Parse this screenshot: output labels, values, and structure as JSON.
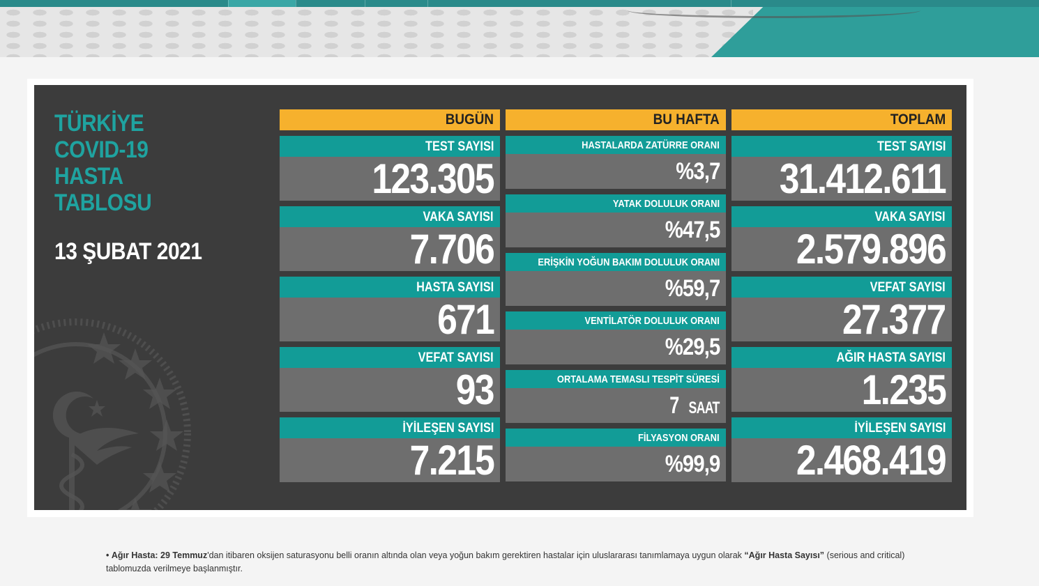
{
  "colors": {
    "teal": "#129c97",
    "title_teal": "#1fa3a0",
    "header_orange": "#f6b12d",
    "board_bg": "#3c3c3c",
    "value_bg": "#6e6e6e"
  },
  "board": {
    "title_lines": [
      "TÜRKİYE",
      "COVID-19",
      "HASTA",
      "TABLOSU"
    ],
    "date": "13 ŞUBAT 2021",
    "emblem_icon": "health-ministry-emblem"
  },
  "today": {
    "header": "BUGÜN",
    "stats": [
      {
        "label": "TEST SAYISI",
        "value": "123.305"
      },
      {
        "label": "VAKA SAYISI",
        "value": "7.706"
      },
      {
        "label": "HASTA SAYISI",
        "value": "671"
      },
      {
        "label": "VEFAT SAYISI",
        "value": "93"
      },
      {
        "label": "İYİLEŞEN SAYISI",
        "value": "7.215"
      }
    ]
  },
  "week": {
    "header": "BU HAFTA",
    "stats": [
      {
        "label": "HASTALARDA ZATÜRRE ORANI",
        "value": "%3,7",
        "unit": ""
      },
      {
        "label": "YATAK DOLULUK ORANI",
        "value": "%47,5",
        "unit": ""
      },
      {
        "label": "ERİŞKİN YOĞUN BAKIM DOLULUK ORANI",
        "value": "%59,7",
        "unit": ""
      },
      {
        "label": "VENTİLATÖR DOLULUK ORANI",
        "value": "%29,5",
        "unit": ""
      },
      {
        "label": "ORTALAMA TEMASLI TESPİT SÜRESİ",
        "value": "7",
        "unit": "SAAT"
      },
      {
        "label": "FİLYASYON ORANI",
        "value": "%99,9",
        "unit": ""
      }
    ]
  },
  "total": {
    "header": "TOPLAM",
    "stats": [
      {
        "label": "TEST SAYISI",
        "value": "31.412.611"
      },
      {
        "label": "VAKA SAYISI",
        "value": "2.579.896"
      },
      {
        "label": "VEFAT SAYISI",
        "value": "27.377"
      },
      {
        "label": "AĞIR HASTA SAYISI",
        "value": "1.235"
      },
      {
        "label": "İYİLEŞEN SAYISI",
        "value": "2.468.419"
      }
    ]
  },
  "footnote": {
    "bullet": "•",
    "term": "Ağır Hasta:",
    "date_bold": "29 Temmuz",
    "text1": "'dan itibaren oksijen saturasyonu belli oranın altında olan veya yoğun bakım gerektiren hastalar için uluslararası tanımlamaya uygun olarak",
    "quoted_bold": "“Ağır Hasta Sayısı”",
    "text2": "(serious and critical) tablomuzda verilmeye başlanmıştır."
  }
}
